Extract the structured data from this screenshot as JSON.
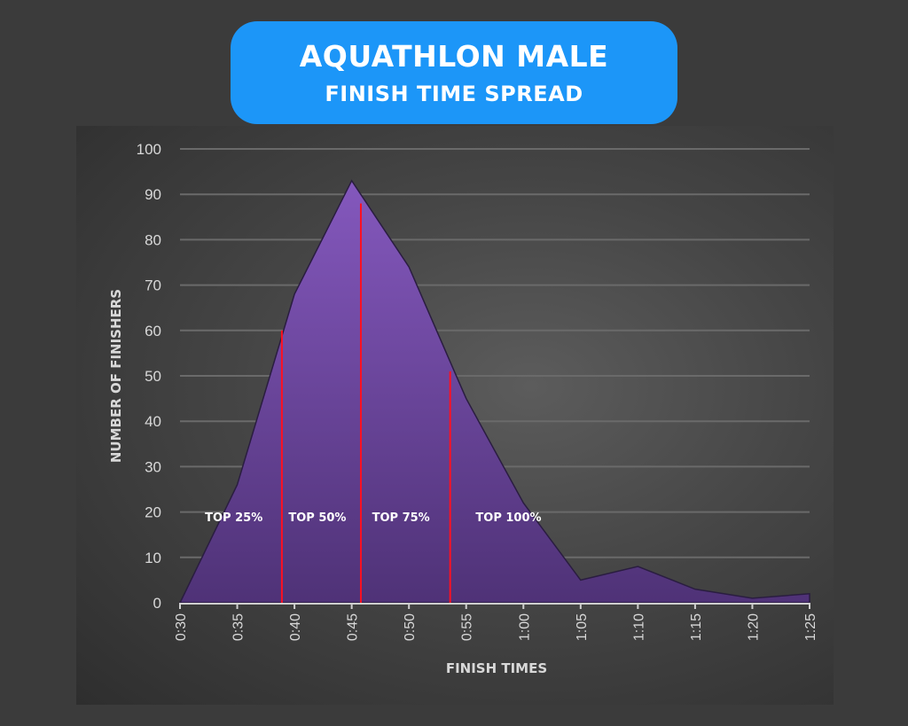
{
  "title": {
    "line1": "AQUATHLON MALE",
    "line2": "FINISH TIME SPREAD"
  },
  "chart_data": {
    "type": "area",
    "title": "AQUATHLON MALE FINISH TIME SPREAD",
    "xlabel": "FINISH TIMES",
    "ylabel": "NUMBER OF FINISHERS",
    "categories": [
      "0:30",
      "0:35",
      "0:40",
      "0:45",
      "0:50",
      "0:55",
      "1:00",
      "1:05",
      "1:10",
      "1:15",
      "1:20",
      "1:25"
    ],
    "x_minutes": [
      30,
      35,
      40,
      45,
      50,
      55,
      60,
      65,
      70,
      75,
      80,
      85
    ],
    "values": [
      0,
      26,
      68,
      93,
      74,
      45,
      22,
      5,
      8,
      3,
      1,
      2
    ],
    "ylim": [
      0,
      100
    ],
    "yticks": [
      0,
      10,
      20,
      30,
      40,
      50,
      60,
      70,
      80,
      90,
      100
    ],
    "grid": true,
    "colors": {
      "area_top": "#8458bd",
      "area_bottom": "#4f3277",
      "marker_line": "#ff1020",
      "grid": "#6a6a6a",
      "text": "#d8d8d8"
    },
    "markers": [
      {
        "x_minutes": 38.9,
        "y": 60
      },
      {
        "x_minutes": 45.8,
        "y": 88
      },
      {
        "x_minutes": 53.6,
        "y": 51
      }
    ],
    "annotations": [
      {
        "text": "TOP 25%",
        "x_minutes": 34.7,
        "y": 18
      },
      {
        "text": "TOP 50%",
        "x_minutes": 42.0,
        "y": 18
      },
      {
        "text": "TOP 75%",
        "x_minutes": 49.3,
        "y": 18
      },
      {
        "text": "TOP 100%",
        "x_minutes": 58.7,
        "y": 18
      }
    ]
  }
}
